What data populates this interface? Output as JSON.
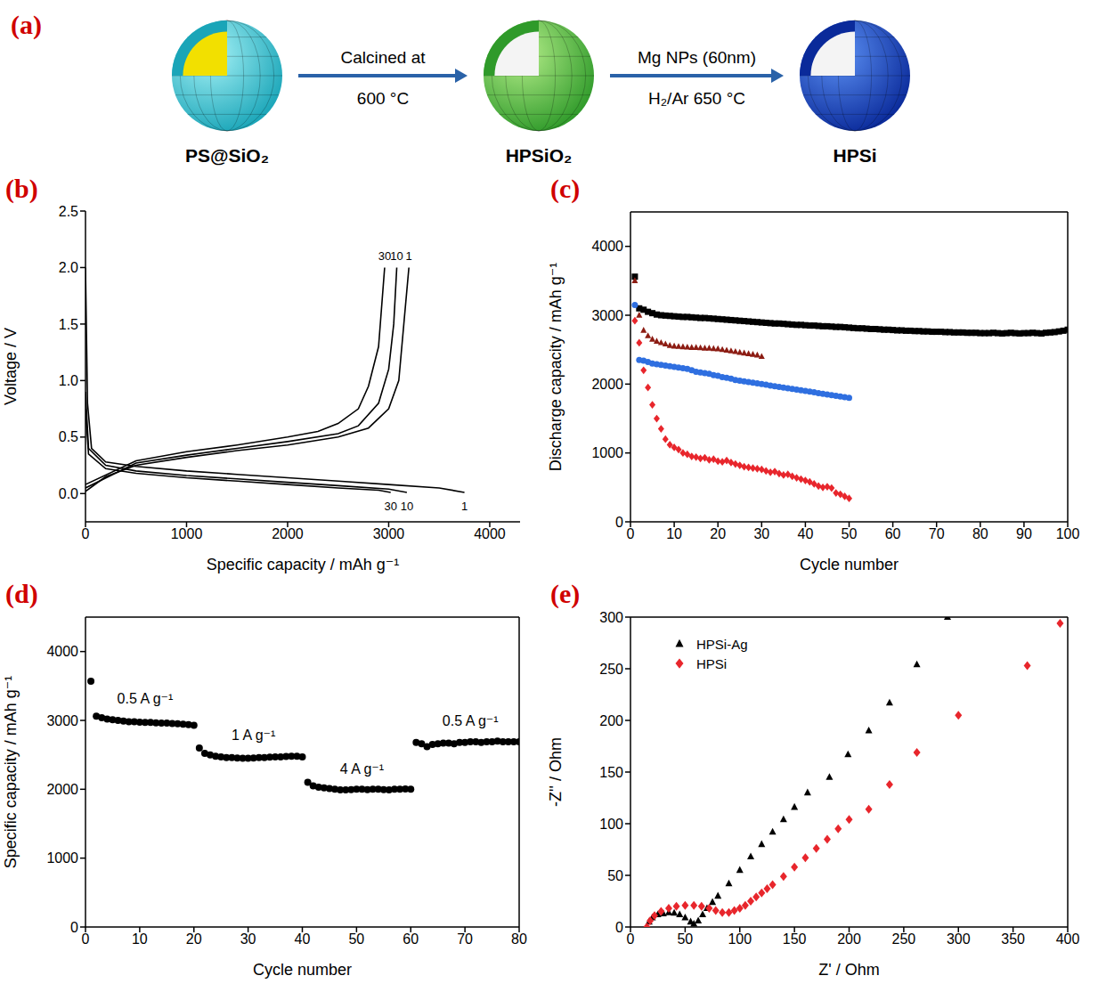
{
  "diagram": {
    "panel": "(a)",
    "nodes": [
      {
        "label": "PS@SiO₂"
      },
      {
        "label": "HPSiO₂"
      },
      {
        "label": "HPSi"
      }
    ],
    "arrows": [
      {
        "above": "Calcined at",
        "below": "600 °C"
      },
      {
        "above": "Mg NPs (60nm)",
        "below": "H₂/Ar 650 °C"
      }
    ]
  },
  "chart_data": [
    {
      "panel": "(b)",
      "type": "line",
      "xlabel": "Specific capacity / mAh g⁻¹",
      "ylabel": "Voltage / V",
      "xlim": [
        0,
        4300
      ],
      "xticks": [
        0,
        1000,
        2000,
        3000,
        4000
      ],
      "ylim": [
        -0.25,
        2.5
      ],
      "yticks": [
        {
          "value": 0,
          "label": "0.0"
        },
        0.5,
        {
          "value": 1,
          "label": "1.0"
        },
        1.5,
        {
          "value": 2,
          "label": "2.0"
        },
        2.5
      ],
      "grid": false,
      "series": [
        {
          "name": "1",
          "color": "#000000",
          "x": [
            0,
            20,
            60,
            200,
            500,
            1000,
            1500,
            2000,
            2500,
            3000,
            3500,
            3750
          ],
          "values": [
            2.0,
            0.8,
            0.4,
            0.28,
            0.24,
            0.2,
            0.17,
            0.14,
            0.11,
            0.08,
            0.05,
            0.01
          ]
        },
        {
          "name": "10",
          "color": "#000000",
          "x": [
            0,
            30,
            200,
            500,
            1000,
            1500,
            2000,
            2500,
            3000,
            3180
          ],
          "values": [
            0.9,
            0.4,
            0.25,
            0.2,
            0.16,
            0.13,
            0.1,
            0.07,
            0.04,
            0.01
          ]
        },
        {
          "name": "30",
          "color": "#000000",
          "x": [
            0,
            30,
            200,
            500,
            1000,
            1500,
            2000,
            2500,
            2900,
            3020
          ],
          "values": [
            0.75,
            0.35,
            0.22,
            0.18,
            0.14,
            0.11,
            0.08,
            0.05,
            0.03,
            0.01
          ]
        },
        {
          "name": "1",
          "color": "#000000",
          "x": [
            0,
            200,
            500,
            1000,
            1500,
            2000,
            2500,
            2800,
            3000,
            3100,
            3150,
            3200
          ],
          "values": [
            0.02,
            0.15,
            0.25,
            0.32,
            0.38,
            0.43,
            0.5,
            0.58,
            0.75,
            1.0,
            1.5,
            2.0
          ]
        },
        {
          "name": "10",
          "color": "#000000",
          "x": [
            0,
            500,
            1000,
            1500,
            2000,
            2500,
            2700,
            2900,
            3000,
            3050,
            3080
          ],
          "values": [
            0.05,
            0.27,
            0.34,
            0.4,
            0.46,
            0.53,
            0.6,
            0.8,
            1.1,
            1.5,
            2.0
          ]
        },
        {
          "name": "30",
          "color": "#000000",
          "x": [
            0,
            500,
            1000,
            1500,
            2000,
            2300,
            2500,
            2700,
            2800,
            2900,
            2960
          ],
          "values": [
            0.08,
            0.29,
            0.37,
            0.43,
            0.5,
            0.55,
            0.62,
            0.75,
            0.95,
            1.3,
            2.0
          ]
        }
      ]
    },
    {
      "panel": "(c)",
      "type": "scatter",
      "xlabel": "Cycle number",
      "ylabel": "Discharge capacity / mAh g⁻¹",
      "xlim": [
        0,
        100
      ],
      "xticks": [
        0,
        10,
        20,
        30,
        40,
        50,
        60,
        70,
        80,
        90,
        100
      ],
      "ylim": [
        0,
        4500
      ],
      "yticks": [
        0,
        1000,
        2000,
        3000,
        4000
      ],
      "grid": false,
      "series": [
        {
          "color": "#000000",
          "marker": "square",
          "x": [
            1,
            2,
            3,
            4,
            5,
            6,
            7,
            8,
            9,
            10,
            11,
            12,
            13,
            14,
            15,
            16,
            17,
            18,
            19,
            20,
            21,
            22,
            23,
            24,
            25,
            26,
            27,
            28,
            29,
            30,
            31,
            32,
            33,
            34,
            35,
            36,
            37,
            38,
            39,
            40,
            41,
            42,
            43,
            44,
            45,
            46,
            47,
            48,
            49,
            50,
            51,
            52,
            53,
            54,
            55,
            56,
            57,
            58,
            59,
            60,
            61,
            62,
            63,
            64,
            65,
            66,
            67,
            68,
            69,
            70,
            71,
            72,
            73,
            74,
            75,
            76,
            77,
            78,
            79,
            80,
            81,
            82,
            83,
            84,
            85,
            86,
            87,
            88,
            89,
            90,
            91,
            92,
            93,
            94,
            95,
            96,
            97,
            98,
            99,
            100
          ],
          "values": [
            3560,
            3100,
            3080,
            3050,
            3030,
            3010,
            3000,
            2995,
            2990,
            2985,
            2980,
            2975,
            2975,
            2970,
            2965,
            2960,
            2960,
            2955,
            2950,
            2945,
            2940,
            2935,
            2930,
            2925,
            2920,
            2915,
            2910,
            2905,
            2900,
            2895,
            2890,
            2885,
            2880,
            2880,
            2875,
            2870,
            2865,
            2860,
            2860,
            2855,
            2850,
            2850,
            2845,
            2840,
            2840,
            2835,
            2830,
            2830,
            2825,
            2820,
            2815,
            2810,
            2810,
            2805,
            2800,
            2800,
            2795,
            2790,
            2790,
            2785,
            2780,
            2780,
            2775,
            2775,
            2770,
            2770,
            2765,
            2765,
            2760,
            2760,
            2760,
            2755,
            2755,
            2750,
            2750,
            2750,
            2745,
            2745,
            2745,
            2740,
            2740,
            2740,
            2745,
            2740,
            2735,
            2740,
            2745,
            2740,
            2735,
            2740,
            2740,
            2745,
            2740,
            2735,
            2745,
            2750,
            2755,
            2765,
            2775,
            2790
          ]
        },
        {
          "color": "#8c1c13",
          "marker": "triangle",
          "x": [
            1,
            2,
            3,
            4,
            5,
            6,
            7,
            8,
            9,
            10,
            11,
            12,
            13,
            14,
            15,
            16,
            17,
            18,
            19,
            20,
            21,
            22,
            23,
            24,
            25,
            26,
            27,
            28,
            29,
            30
          ],
          "values": [
            3500,
            3000,
            2780,
            2700,
            2650,
            2620,
            2600,
            2580,
            2560,
            2550,
            2545,
            2540,
            2535,
            2530,
            2530,
            2525,
            2520,
            2520,
            2515,
            2510,
            2500,
            2490,
            2480,
            2470,
            2460,
            2450,
            2440,
            2430,
            2420,
            2400
          ]
        },
        {
          "color": "#2f6fe0",
          "marker": "circle",
          "x": [
            1,
            2,
            3,
            4,
            5,
            6,
            7,
            8,
            9,
            10,
            11,
            12,
            13,
            14,
            15,
            16,
            17,
            18,
            19,
            20,
            21,
            22,
            23,
            24,
            25,
            26,
            27,
            28,
            29,
            30,
            31,
            32,
            33,
            34,
            35,
            36,
            37,
            38,
            39,
            40,
            41,
            42,
            43,
            44,
            45,
            46,
            47,
            48,
            49,
            50
          ],
          "values": [
            3150,
            2350,
            2340,
            2320,
            2300,
            2290,
            2280,
            2270,
            2260,
            2250,
            2240,
            2230,
            2220,
            2200,
            2180,
            2170,
            2160,
            2150,
            2130,
            2120,
            2100,
            2090,
            2080,
            2060,
            2050,
            2040,
            2030,
            2020,
            2010,
            2000,
            1990,
            1980,
            1970,
            1960,
            1950,
            1940,
            1930,
            1920,
            1910,
            1900,
            1890,
            1880,
            1870,
            1860,
            1850,
            1840,
            1830,
            1820,
            1810,
            1800
          ]
        },
        {
          "color": "#e8262c",
          "marker": "diamond",
          "x": [
            1,
            2,
            3,
            4,
            5,
            6,
            7,
            8,
            9,
            10,
            11,
            12,
            13,
            14,
            15,
            16,
            17,
            18,
            19,
            20,
            21,
            22,
            23,
            24,
            25,
            26,
            27,
            28,
            29,
            30,
            31,
            32,
            33,
            34,
            35,
            36,
            37,
            38,
            39,
            40,
            41,
            42,
            43,
            44,
            45,
            46,
            47,
            48,
            49,
            50
          ],
          "values": [
            2920,
            2600,
            2200,
            1950,
            1700,
            1500,
            1350,
            1200,
            1120,
            1080,
            1050,
            1000,
            980,
            950,
            940,
            920,
            930,
            900,
            910,
            880,
            870,
            890,
            860,
            840,
            820,
            800,
            790,
            780,
            770,
            760,
            740,
            720,
            730,
            700,
            680,
            690,
            660,
            640,
            620,
            600,
            580,
            550,
            520,
            500,
            510,
            490,
            420,
            400,
            370,
            340
          ]
        }
      ]
    },
    {
      "panel": "(d)",
      "type": "scatter",
      "xlabel": "Cycle number",
      "ylabel": "Specific capacity / mAh g⁻¹",
      "xlim": [
        0,
        80
      ],
      "xticks": [
        0,
        10,
        20,
        30,
        40,
        50,
        60,
        70,
        80
      ],
      "ylim": [
        0,
        4500
      ],
      "yticks": [
        0,
        1000,
        2000,
        3000,
        4000
      ],
      "grid": false,
      "annotations": [
        {
          "text": "0.5 A g⁻¹",
          "x": 11,
          "y": 3250
        },
        {
          "text": "1 A g⁻¹",
          "x": 31,
          "y": 2720
        },
        {
          "text": "4 A g⁻¹",
          "x": 51,
          "y": 2230
        },
        {
          "text": "0.5 A g⁻¹",
          "x": 71,
          "y": 2920
        }
      ],
      "series": [
        {
          "color": "#000000",
          "marker": "circle",
          "x": [
            1,
            2,
            3,
            4,
            5,
            6,
            7,
            8,
            9,
            10,
            11,
            12,
            13,
            14,
            15,
            16,
            17,
            18,
            19,
            20,
            21,
            22,
            23,
            24,
            25,
            26,
            27,
            28,
            29,
            30,
            31,
            32,
            33,
            34,
            35,
            36,
            37,
            38,
            39,
            40,
            41,
            42,
            43,
            44,
            45,
            46,
            47,
            48,
            49,
            50,
            51,
            52,
            53,
            54,
            55,
            56,
            57,
            58,
            59,
            60,
            61,
            62,
            63,
            64,
            65,
            66,
            67,
            68,
            69,
            70,
            71,
            72,
            73,
            74,
            75,
            76,
            77,
            78,
            79,
            80
          ],
          "values": [
            3570,
            3060,
            3040,
            3020,
            3010,
            3000,
            2990,
            2980,
            2980,
            2975,
            2970,
            2970,
            2965,
            2960,
            2960,
            2955,
            2950,
            2945,
            2940,
            2930,
            2600,
            2520,
            2500,
            2480,
            2470,
            2460,
            2460,
            2455,
            2450,
            2450,
            2455,
            2460,
            2460,
            2465,
            2470,
            2470,
            2475,
            2480,
            2480,
            2470,
            2100,
            2050,
            2030,
            2020,
            2010,
            2000,
            1990,
            1990,
            1995,
            2000,
            2000,
            1995,
            2000,
            2000,
            1995,
            1990,
            2000,
            2000,
            2005,
            2000,
            2680,
            2660,
            2620,
            2650,
            2660,
            2670,
            2670,
            2660,
            2680,
            2680,
            2690,
            2690,
            2680,
            2690,
            2690,
            2700,
            2690,
            2690,
            2690,
            2690
          ]
        }
      ]
    },
    {
      "panel": "(e)",
      "type": "scatter",
      "xlabel": "Z' / Ohm",
      "ylabel": "-Z'' / Ohm",
      "xlim": [
        0,
        400
      ],
      "xticks": [
        0,
        50,
        100,
        150,
        200,
        250,
        300,
        350,
        400
      ],
      "ylim": [
        0,
        300
      ],
      "yticks": [
        0,
        50,
        100,
        150,
        200,
        250,
        300
      ],
      "grid": false,
      "legend": "top-left",
      "series": [
        {
          "name": "HPSi-Ag",
          "color": "#000000",
          "marker": "triangle",
          "x": [
            15,
            17,
            20,
            25,
            30,
            35,
            40,
            45,
            50,
            55,
            58,
            62,
            66,
            70,
            75,
            80,
            90,
            100,
            110,
            120,
            130,
            140,
            150,
            162,
            182,
            199,
            218,
            237,
            262,
            290
          ],
          "values": [
            0,
            5,
            9,
            12,
            13,
            14,
            13.5,
            12,
            9,
            5,
            3,
            6,
            12,
            18,
            24,
            30,
            42,
            55,
            68,
            80,
            92,
            104,
            116,
            130,
            145,
            167,
            190,
            217,
            254,
            300
          ]
        },
        {
          "name": "HPSi",
          "color": "#e8262c",
          "marker": "diamond",
          "x": [
            15,
            18,
            22,
            28,
            35,
            42,
            50,
            58,
            65,
            72,
            78,
            84,
            90,
            95,
            100,
            105,
            110,
            115,
            120,
            125,
            130,
            140,
            150,
            160,
            170,
            180,
            190,
            200,
            218,
            237,
            262,
            300,
            363,
            393
          ],
          "values": [
            0,
            6,
            11,
            15,
            18,
            20,
            21,
            21,
            20,
            18,
            16,
            14,
            14,
            16,
            18,
            21,
            25,
            29,
            33,
            37,
            41,
            49,
            58,
            67,
            76,
            85,
            95,
            104,
            114,
            138,
            169,
            205,
            253,
            294
          ]
        }
      ]
    }
  ]
}
